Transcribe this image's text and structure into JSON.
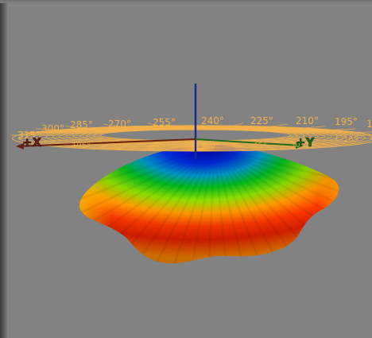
{
  "colors": {
    "background": "#828282",
    "ring": "#f2b14c",
    "x_axis": "#6b1f0e",
    "y_axis": "#1f6a1f",
    "z_axis": "#1a2a8a",
    "gain_high": "#e02000",
    "gain_low": "#0000cc"
  },
  "pattern": {
    "type": "3d-antenna-radiation-pattern",
    "colormap": "jet",
    "colormap_stops": [
      "#0000cc",
      "#00a0ff",
      "#00c000",
      "#ffff00",
      "#ff8000",
      "#e02000"
    ]
  },
  "azimuth_labels_back": [
    "315°",
    "300°",
    "285°",
    "270°",
    "255°",
    "240°",
    "225°",
    "210°",
    "195°",
    "1"
  ],
  "azimuth_labels_front": [
    "105°",
    "90°",
    "75°",
    "60°",
    "45°",
    "30°",
    "15°",
    "165°"
  ],
  "axes": {
    "x_label": "+X",
    "y_label": "+Y"
  }
}
